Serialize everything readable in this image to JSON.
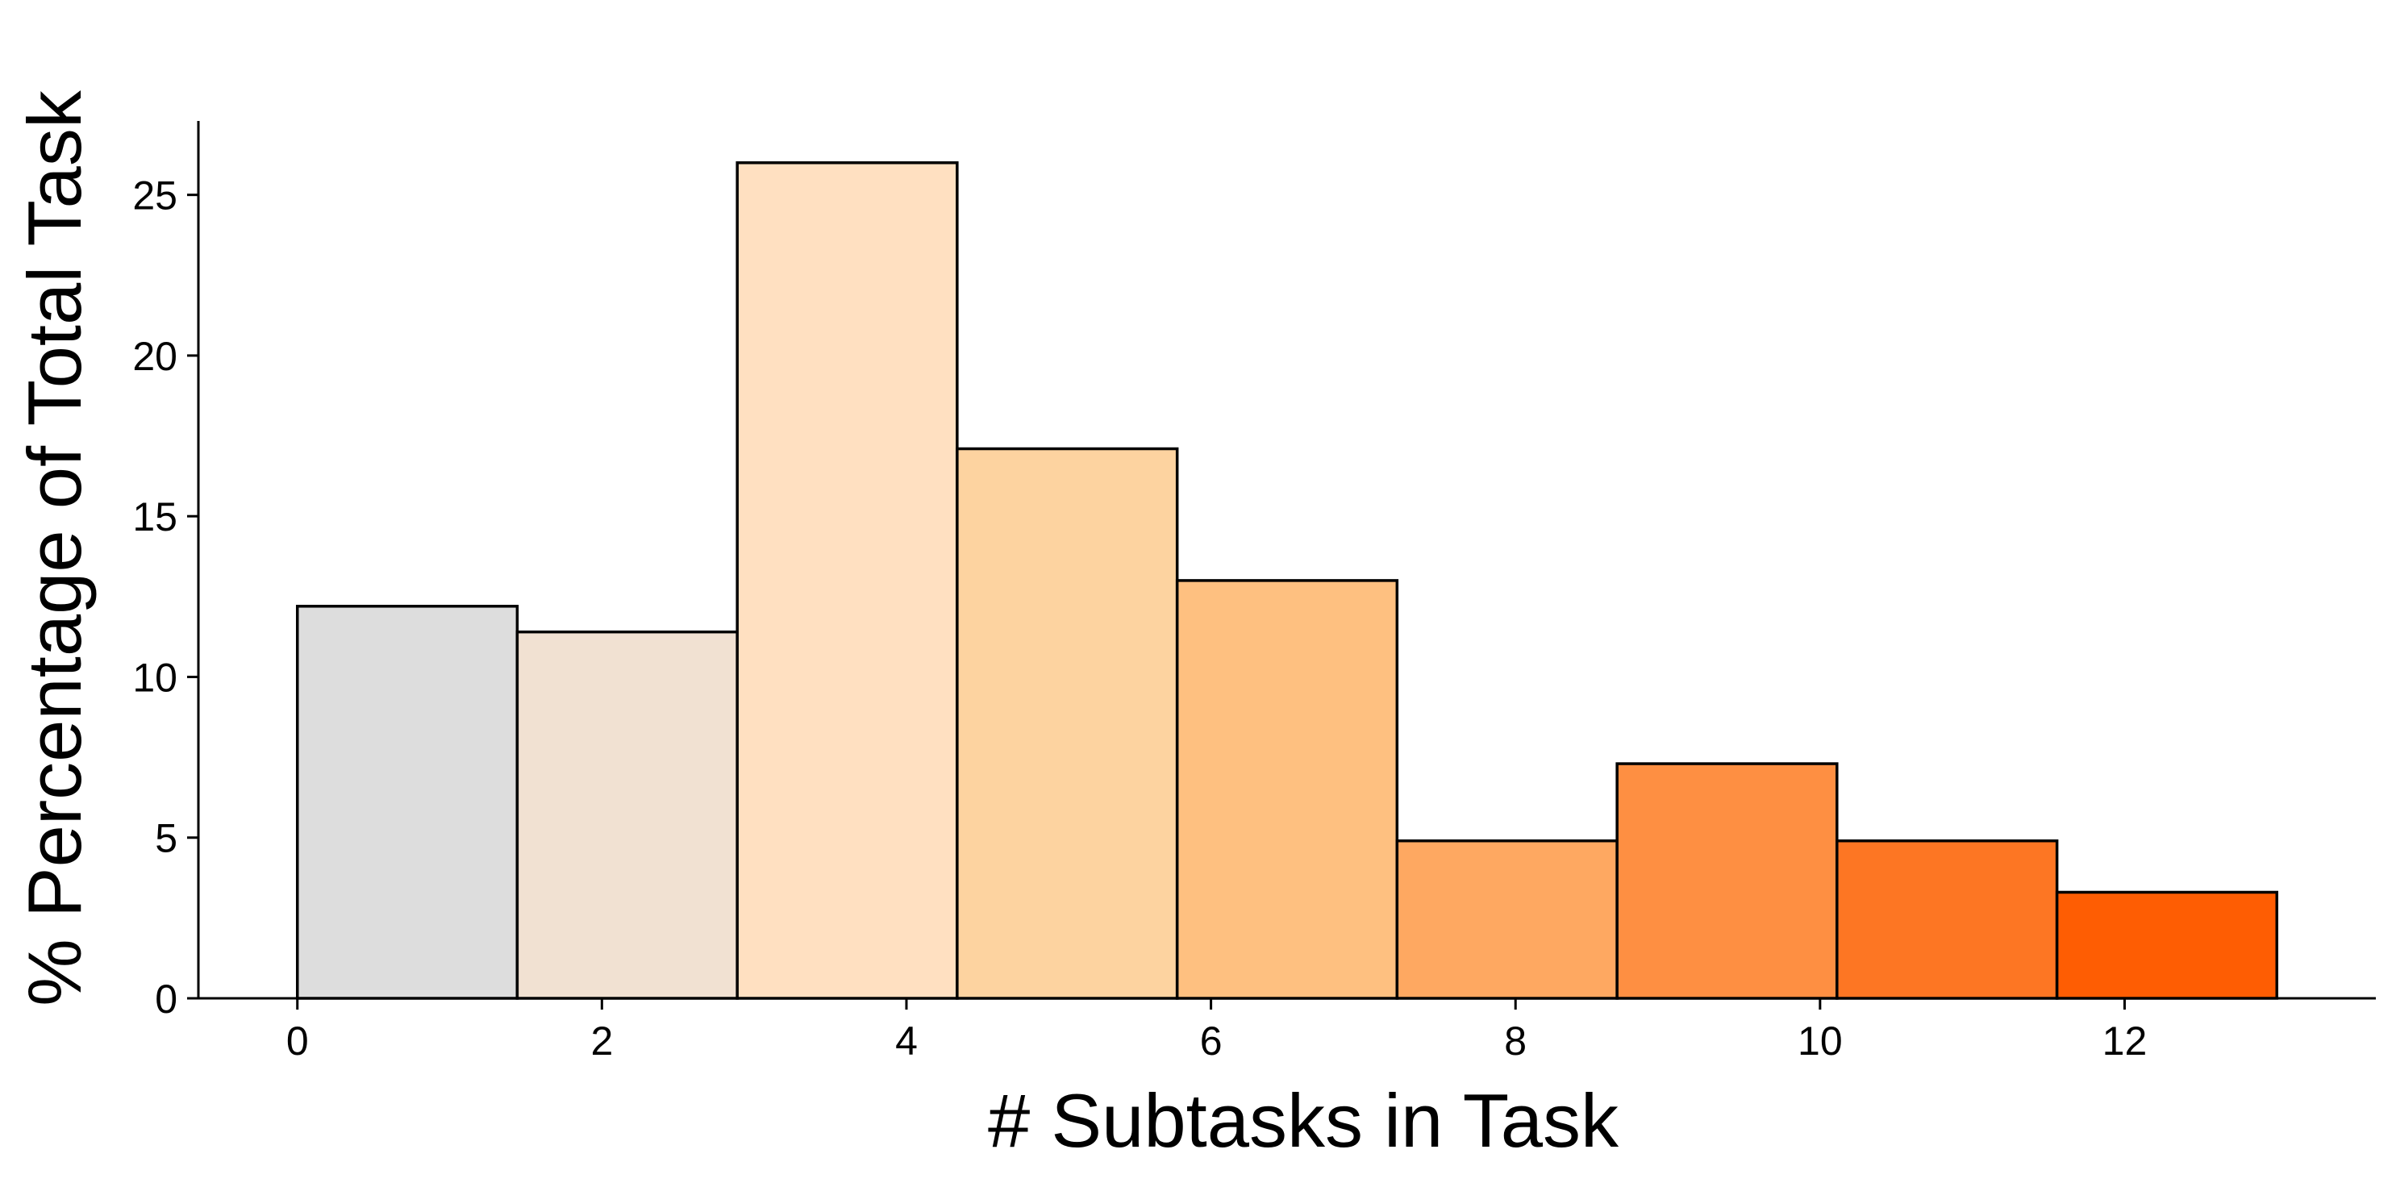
{
  "chart_data": {
    "type": "bar",
    "title": "",
    "xlabel": "# Subtasks in Task",
    "ylabel": "% Percentage of Total Task",
    "xlim": [
      -0.65,
      13.65
    ],
    "ylim": [
      0,
      27.3
    ],
    "xticks": [
      0,
      2,
      4,
      6,
      8,
      10,
      12
    ],
    "yticks": [
      0,
      5,
      10,
      15,
      20,
      25
    ],
    "grid": false,
    "legend": "none",
    "bins": [
      {
        "x0": 0.0,
        "x1": 1.444,
        "value": 12.2,
        "color": "#dddddd"
      },
      {
        "x0": 1.444,
        "x1": 2.889,
        "value": 11.4,
        "color": "#f1e1d2"
      },
      {
        "x0": 2.889,
        "x1": 4.333,
        "value": 26.0,
        "color": "#ffe0c1"
      },
      {
        "x0": 4.333,
        "x1": 5.778,
        "value": 17.1,
        "color": "#fdd3a0"
      },
      {
        "x0": 5.778,
        "x1": 7.222,
        "value": 13.0,
        "color": "#fec080"
      },
      {
        "x0": 7.222,
        "x1": 8.667,
        "value": 4.9,
        "color": "#fea861"
      },
      {
        "x0": 8.667,
        "x1": 10.111,
        "value": 7.3,
        "color": "#fe8f42"
      },
      {
        "x0": 10.111,
        "x1": 11.556,
        "value": 4.9,
        "color": "#fd7623"
      },
      {
        "x0": 11.556,
        "x1": 13.0,
        "value": 3.3,
        "color": "#fe5d03"
      }
    ]
  }
}
